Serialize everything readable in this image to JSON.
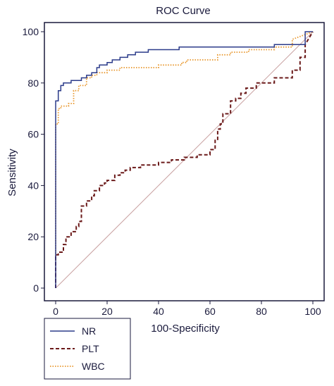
{
  "chart_data": {
    "type": "line",
    "title": "ROC Curve",
    "xlabel": "100-Specificity",
    "ylabel": "Sensitivity",
    "xlim": [
      0,
      100
    ],
    "ylim": [
      0,
      100
    ],
    "xticks": [
      "0",
      "20",
      "40",
      "60",
      "80",
      "100"
    ],
    "yticks": [
      "0",
      "20",
      "40",
      "60",
      "80",
      "100"
    ],
    "grid": false,
    "legend_position": "bottom-left",
    "reference_line": {
      "x": [
        0,
        100
      ],
      "y": [
        0,
        100
      ],
      "color": "#c8a0a0"
    },
    "series": [
      {
        "name": "NR",
        "color": "#2b3b8a",
        "style": "solid",
        "x": [
          0,
          0,
          1,
          1,
          2,
          2,
          3,
          3,
          6,
          6,
          10,
          10,
          12,
          12,
          14,
          14,
          16,
          16,
          17,
          17,
          20,
          20,
          22,
          22,
          25,
          25,
          28,
          28,
          31,
          31,
          36,
          36,
          48,
          48,
          85,
          85,
          97,
          97,
          100
        ],
        "y": [
          0,
          73,
          73,
          77,
          77,
          79,
          79,
          80,
          80,
          81,
          81,
          82,
          82,
          83,
          83,
          84,
          84,
          86,
          86,
          87,
          87,
          88,
          88,
          89,
          89,
          90,
          90,
          91,
          91,
          92,
          92,
          93,
          93,
          94,
          94,
          95,
          95,
          100,
          100
        ]
      },
      {
        "name": "PLT",
        "color": "#6b1a1a",
        "style": "dashed",
        "x": [
          0,
          0,
          1,
          1,
          3,
          3,
          4,
          4,
          6,
          6,
          8,
          8,
          9,
          9,
          10,
          10,
          12,
          12,
          14,
          14,
          15,
          15,
          17,
          17,
          19,
          19,
          20,
          20,
          23,
          23,
          25,
          25,
          27,
          27,
          29,
          29,
          33,
          33,
          40,
          40,
          45,
          45,
          50,
          50,
          55,
          55,
          60,
          60,
          62,
          62,
          63,
          63,
          64,
          64,
          65,
          65,
          68,
          68,
          70,
          70,
          72,
          72,
          74,
          74,
          78,
          78,
          85,
          85,
          92,
          92,
          95,
          95,
          97,
          97,
          100
        ],
        "y": [
          0,
          13,
          13,
          14,
          14,
          17,
          17,
          20,
          20,
          22,
          22,
          24,
          24,
          26,
          26,
          32,
          32,
          34,
          34,
          36,
          36,
          38,
          38,
          40,
          40,
          41,
          41,
          42,
          42,
          44,
          44,
          45,
          45,
          46,
          46,
          47,
          47,
          48,
          48,
          49,
          49,
          50,
          50,
          51,
          51,
          52,
          52,
          54,
          54,
          58,
          58,
          62,
          62,
          64,
          64,
          68,
          68,
          73,
          73,
          74,
          74,
          76,
          76,
          78,
          78,
          80,
          80,
          82,
          82,
          85,
          85,
          90,
          90,
          95,
          100
        ]
      },
      {
        "name": "WBC",
        "color": "#e8962b",
        "style": "dotted",
        "x": [
          0,
          0,
          1,
          1,
          2,
          2,
          5,
          5,
          7,
          7,
          9,
          9,
          12,
          12,
          14,
          14,
          16,
          16,
          20,
          20,
          25,
          25,
          40,
          40,
          49,
          49,
          51,
          51,
          63,
          63,
          68,
          68,
          75,
          75,
          85,
          85,
          92,
          92,
          100
        ],
        "y": [
          0,
          64,
          64,
          70,
          70,
          71,
          71,
          72,
          72,
          77,
          77,
          79,
          79,
          82,
          82,
          83,
          83,
          84,
          84,
          85,
          85,
          86,
          86,
          87,
          87,
          88,
          88,
          89,
          89,
          91,
          91,
          92,
          92,
          93,
          93,
          94,
          94,
          97,
          100
        ]
      }
    ]
  }
}
